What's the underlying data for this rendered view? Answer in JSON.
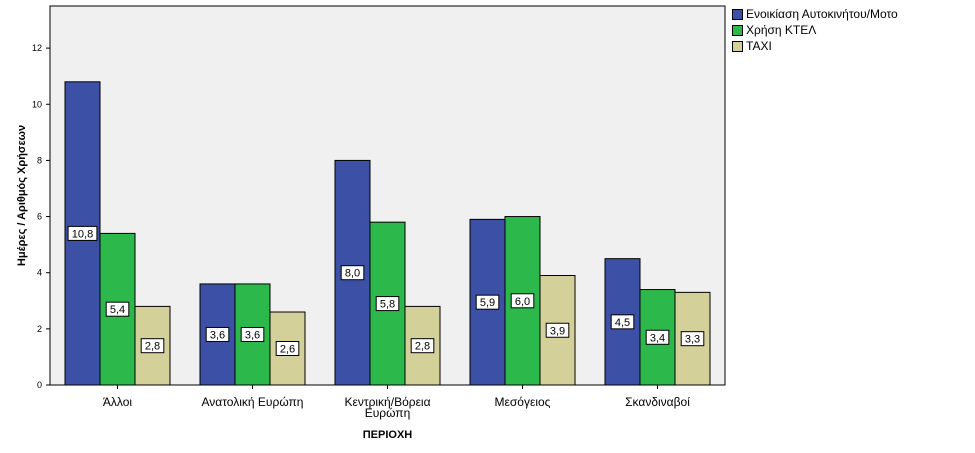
{
  "chart_data": {
    "type": "bar",
    "categories": [
      "Άλλοι",
      "Ανατολική Ευρώπη",
      "Κεντρική/Βόρεια Ευρώπη",
      "Μεσόγειος",
      "Σκανδιναβοί"
    ],
    "series": [
      {
        "name": "Ενοικίαση Αυτοκινήτου/Μοτο",
        "color": "#3c51a6",
        "values": [
          10.8,
          3.6,
          8.0,
          5.9,
          4.5
        ],
        "labels": [
          "10,8",
          "3,6",
          "8,0",
          "5,9",
          "4,5"
        ]
      },
      {
        "name": "Χρήση ΚΤΕΛ",
        "color": "#2db84b",
        "values": [
          5.4,
          3.6,
          5.8,
          6.0,
          3.4
        ],
        "labels": [
          "5,4",
          "3,6",
          "5,8",
          "6,0",
          "3,4"
        ]
      },
      {
        "name": "ΤΑΧΙ",
        "color": "#d4d09a",
        "values": [
          2.8,
          2.6,
          2.8,
          3.9,
          3.3
        ],
        "labels": [
          "2,8",
          "2,6",
          "2,8",
          "3,9",
          "3,3"
        ]
      }
    ],
    "xlabel": "ΠΕΡΙΟΧΗ",
    "ylabel": "Ημέρες / Αριθμός Χρήσεων",
    "ylim": [
      0,
      13.5
    ],
    "yticks": [
      0,
      2,
      4,
      6,
      8,
      10,
      12
    ],
    "grid": false,
    "legend_position": "top-right",
    "plot_background": "#f0f0f0"
  }
}
